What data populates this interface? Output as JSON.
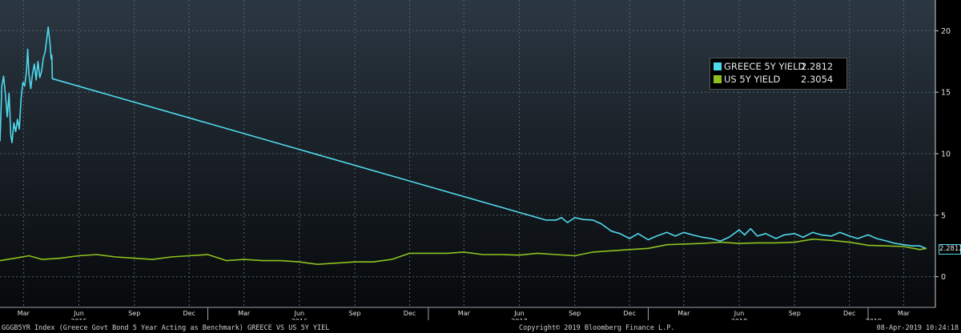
{
  "chart_data": {
    "type": "line",
    "title": "",
    "xlabel": "",
    "ylabel": "",
    "ylim": [
      -2.5,
      22.5
    ],
    "y_ticks": [
      0,
      5,
      10,
      15,
      20
    ],
    "x_range": [
      "2015-01-21",
      "2019-04-08"
    ],
    "x_month_ticks": [
      {
        "date": "2015-03-01",
        "label": "Mar"
      },
      {
        "date": "2015-06-01",
        "label": "Jun"
      },
      {
        "date": "2015-09-01",
        "label": "Sep"
      },
      {
        "date": "2015-12-01",
        "label": "Dec"
      },
      {
        "date": "2016-03-01",
        "label": "Mar"
      },
      {
        "date": "2016-06-01",
        "label": "Jun"
      },
      {
        "date": "2016-09-01",
        "label": "Sep"
      },
      {
        "date": "2016-12-01",
        "label": "Dec"
      },
      {
        "date": "2017-03-01",
        "label": "Mar"
      },
      {
        "date": "2017-06-01",
        "label": "Jun"
      },
      {
        "date": "2017-09-01",
        "label": "Sep"
      },
      {
        "date": "2017-12-01",
        "label": "Dec"
      },
      {
        "date": "2018-03-01",
        "label": "Mar"
      },
      {
        "date": "2018-06-01",
        "label": "Jun"
      },
      {
        "date": "2018-09-01",
        "label": "Sep"
      },
      {
        "date": "2018-12-01",
        "label": "Dec"
      },
      {
        "date": "2019-03-01",
        "label": "Mar"
      }
    ],
    "x_year_ticks": [
      {
        "date": "2015-06-01",
        "label": "2015"
      },
      {
        "date": "2016-06-01",
        "label": "2016"
      },
      {
        "date": "2017-06-01",
        "label": "2017"
      },
      {
        "date": "2018-06-01",
        "label": "2018"
      },
      {
        "date": "2019-01-10",
        "label": "2019"
      }
    ],
    "x_divider_dates": [
      "2016-01-01",
      "2017-01-01",
      "2018-01-01",
      "2019-01-01"
    ],
    "grid": true,
    "legend_position": "top-right",
    "series": [
      {
        "name": "GREECE 5Y YIELD",
        "last_value": "2.2812",
        "color": "#4fd8ec",
        "points": [
          [
            "2015-01-21",
            11.0
          ],
          [
            "2015-01-24",
            15.5
          ],
          [
            "2015-01-27",
            16.3
          ],
          [
            "2015-01-30",
            14.8
          ],
          [
            "2015-02-02",
            13.0
          ],
          [
            "2015-02-05",
            14.9
          ],
          [
            "2015-02-08",
            11.5
          ],
          [
            "2015-02-10",
            10.9
          ],
          [
            "2015-02-13",
            12.5
          ],
          [
            "2015-02-16",
            11.8
          ],
          [
            "2015-02-19",
            12.8
          ],
          [
            "2015-02-22",
            12.0
          ],
          [
            "2015-02-25",
            14.5
          ],
          [
            "2015-02-28",
            15.8
          ],
          [
            "2015-03-03",
            15.5
          ],
          [
            "2015-03-06",
            16.7
          ],
          [
            "2015-03-08",
            18.5
          ],
          [
            "2015-03-10",
            16.5
          ],
          [
            "2015-03-13",
            15.3
          ],
          [
            "2015-03-16",
            16.5
          ],
          [
            "2015-03-19",
            17.3
          ],
          [
            "2015-03-22",
            16.0
          ],
          [
            "2015-03-25",
            17.5
          ],
          [
            "2015-03-28",
            16.2
          ],
          [
            "2015-03-31",
            16.7
          ],
          [
            "2015-04-03",
            17.8
          ],
          [
            "2015-04-06",
            18.3
          ],
          [
            "2015-04-09",
            19.5
          ],
          [
            "2015-04-11",
            20.3
          ],
          [
            "2015-04-14",
            19.0
          ],
          [
            "2015-04-16",
            17.7
          ],
          [
            "2015-04-17",
            18.0
          ],
          [
            "2015-04-18",
            16.1
          ],
          [
            "2017-07-15",
            4.6
          ],
          [
            "2017-08-01",
            4.6
          ],
          [
            "2017-08-10",
            4.8
          ],
          [
            "2017-08-20",
            4.4
          ],
          [
            "2017-09-01",
            4.8
          ],
          [
            "2017-09-15",
            4.65
          ],
          [
            "2017-10-01",
            4.6
          ],
          [
            "2017-10-15",
            4.3
          ],
          [
            "2017-11-01",
            3.7
          ],
          [
            "2017-11-15",
            3.5
          ],
          [
            "2017-12-01",
            3.1
          ],
          [
            "2017-12-15",
            3.5
          ],
          [
            "2018-01-01",
            3.0
          ],
          [
            "2018-01-15",
            3.3
          ],
          [
            "2018-02-01",
            3.6
          ],
          [
            "2018-02-15",
            3.3
          ],
          [
            "2018-03-01",
            3.6
          ],
          [
            "2018-03-15",
            3.4
          ],
          [
            "2018-04-01",
            3.2
          ],
          [
            "2018-04-15",
            3.1
          ],
          [
            "2018-05-01",
            2.9
          ],
          [
            "2018-05-15",
            3.2
          ],
          [
            "2018-06-01",
            3.8
          ],
          [
            "2018-06-10",
            3.4
          ],
          [
            "2018-06-20",
            3.9
          ],
          [
            "2018-07-01",
            3.3
          ],
          [
            "2018-07-15",
            3.5
          ],
          [
            "2018-08-01",
            3.1
          ],
          [
            "2018-08-15",
            3.4
          ],
          [
            "2018-09-01",
            3.5
          ],
          [
            "2018-09-15",
            3.2
          ],
          [
            "2018-10-01",
            3.6
          ],
          [
            "2018-10-15",
            3.4
          ],
          [
            "2018-11-01",
            3.3
          ],
          [
            "2018-11-15",
            3.6
          ],
          [
            "2018-12-01",
            3.3
          ],
          [
            "2018-12-15",
            3.1
          ],
          [
            "2019-01-01",
            3.4
          ],
          [
            "2019-01-15",
            3.1
          ],
          [
            "2019-02-01",
            2.9
          ],
          [
            "2019-02-15",
            2.7
          ],
          [
            "2019-03-01",
            2.6
          ],
          [
            "2019-03-15",
            2.5
          ],
          [
            "2019-03-28",
            2.5
          ],
          [
            "2019-04-08",
            2.2812
          ]
        ]
      },
      {
        "name": "US 5Y YIELD",
        "last_value": "2.3054",
        "color": "#8dc21f",
        "points": [
          [
            "2015-01-21",
            1.3
          ],
          [
            "2015-02-15",
            1.5
          ],
          [
            "2015-03-10",
            1.7
          ],
          [
            "2015-04-01",
            1.4
          ],
          [
            "2015-05-01",
            1.5
          ],
          [
            "2015-06-01",
            1.7
          ],
          [
            "2015-07-01",
            1.8
          ],
          [
            "2015-08-01",
            1.6
          ],
          [
            "2015-09-01",
            1.5
          ],
          [
            "2015-10-01",
            1.4
          ],
          [
            "2015-11-01",
            1.6
          ],
          [
            "2015-12-01",
            1.7
          ],
          [
            "2016-01-01",
            1.8
          ],
          [
            "2016-02-01",
            1.3
          ],
          [
            "2016-03-01",
            1.4
          ],
          [
            "2016-04-01",
            1.3
          ],
          [
            "2016-05-01",
            1.3
          ],
          [
            "2016-06-01",
            1.2
          ],
          [
            "2016-07-01",
            1.0
          ],
          [
            "2016-08-01",
            1.1
          ],
          [
            "2016-09-01",
            1.2
          ],
          [
            "2016-10-01",
            1.2
          ],
          [
            "2016-11-01",
            1.4
          ],
          [
            "2016-12-01",
            1.9
          ],
          [
            "2017-01-01",
            1.9
          ],
          [
            "2017-02-01",
            1.9
          ],
          [
            "2017-03-01",
            2.0
          ],
          [
            "2017-04-01",
            1.8
          ],
          [
            "2017-05-01",
            1.8
          ],
          [
            "2017-06-01",
            1.75
          ],
          [
            "2017-07-01",
            1.9
          ],
          [
            "2017-08-01",
            1.8
          ],
          [
            "2017-09-01",
            1.7
          ],
          [
            "2017-10-01",
            2.0
          ],
          [
            "2017-11-01",
            2.1
          ],
          [
            "2017-12-01",
            2.2
          ],
          [
            "2018-01-01",
            2.3
          ],
          [
            "2018-02-01",
            2.6
          ],
          [
            "2018-03-01",
            2.65
          ],
          [
            "2018-04-01",
            2.7
          ],
          [
            "2018-05-01",
            2.8
          ],
          [
            "2018-06-01",
            2.7
          ],
          [
            "2018-07-01",
            2.75
          ],
          [
            "2018-08-01",
            2.75
          ],
          [
            "2018-09-01",
            2.8
          ],
          [
            "2018-10-01",
            3.05
          ],
          [
            "2018-11-01",
            2.95
          ],
          [
            "2018-12-01",
            2.8
          ],
          [
            "2019-01-01",
            2.55
          ],
          [
            "2019-02-01",
            2.5
          ],
          [
            "2019-03-01",
            2.45
          ],
          [
            "2019-03-28",
            2.2
          ],
          [
            "2019-04-08",
            2.3054
          ]
        ]
      }
    ]
  },
  "legend": {
    "greece_label": "GREECE 5Y YIELD",
    "greece_value": "2.2812",
    "us_label": "US 5Y YIELD",
    "us_value": "2.3054"
  },
  "last_label": "2.2812",
  "footer": {
    "left": "GGGB5YR Index (Greece Govt Bond 5 Year Acting as Benchmark) GREECE VS US 5Y YIEL",
    "center": "Copyright© 2019 Bloomberg Finance L.P.",
    "right": "08-Apr-2019 10:24:18"
  },
  "colors": {
    "greece": "#4fd8ec",
    "us": "#8dc21f",
    "background_top": "#2b3742",
    "background_bottom": "#07090b",
    "grid": "#55616b"
  }
}
